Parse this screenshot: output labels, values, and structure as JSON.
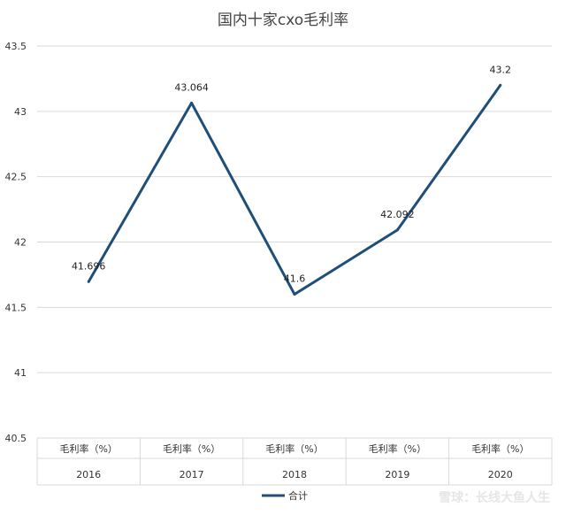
{
  "chart_data": {
    "type": "line",
    "title": "国内十家cxo毛利率",
    "categories": [
      "2016",
      "2017",
      "2018",
      "2019",
      "2020"
    ],
    "category_group_label": "毛利率（%）",
    "series": [
      {
        "name": "合计",
        "values": [
          41.696,
          43.064,
          41.6,
          42.092,
          43.2
        ],
        "color": "#1f4e79"
      }
    ],
    "data_labels": [
      "41.696",
      "43.064",
      "41.6",
      "42.092",
      "43.2"
    ],
    "ylim": [
      40.5,
      43.5
    ],
    "yticks": [
      43.5,
      43,
      42.5,
      42,
      41.5,
      41,
      40.5
    ],
    "ytick_labels": [
      "43.5",
      "43",
      "42.5",
      "42",
      "41.5",
      "41",
      "40.5"
    ],
    "grid": true,
    "legend_position": "bottom"
  },
  "watermark": {
    "text": "雪球：长线大鱼人生"
  }
}
